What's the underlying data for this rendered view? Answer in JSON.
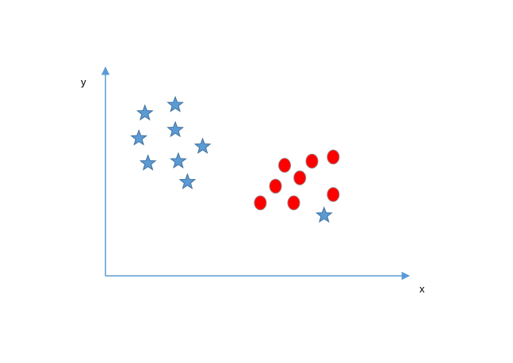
{
  "diagram": {
    "axes": {
      "x_label": "x",
      "y_label": "y",
      "color": "#5b9bd5"
    },
    "groups": [
      {
        "marker": "star",
        "fill": "#5b9bd5",
        "stroke": "#41719c",
        "points": [
          {
            "x": 0.13,
            "y": 0.78
          },
          {
            "x": 0.23,
            "y": 0.82
          },
          {
            "x": 0.11,
            "y": 0.66
          },
          {
            "x": 0.23,
            "y": 0.7
          },
          {
            "x": 0.32,
            "y": 0.62
          },
          {
            "x": 0.14,
            "y": 0.54
          },
          {
            "x": 0.24,
            "y": 0.55
          },
          {
            "x": 0.27,
            "y": 0.45
          },
          {
            "x": 0.72,
            "y": 0.29
          }
        ]
      },
      {
        "marker": "circle",
        "fill": "#ff0000",
        "stroke": "#9e7c7c",
        "points": [
          {
            "x": 0.59,
            "y": 0.53
          },
          {
            "x": 0.68,
            "y": 0.55
          },
          {
            "x": 0.75,
            "y": 0.57
          },
          {
            "x": 0.64,
            "y": 0.47
          },
          {
            "x": 0.56,
            "y": 0.43
          },
          {
            "x": 0.75,
            "y": 0.39
          },
          {
            "x": 0.51,
            "y": 0.35
          },
          {
            "x": 0.62,
            "y": 0.35
          }
        ]
      }
    ]
  }
}
